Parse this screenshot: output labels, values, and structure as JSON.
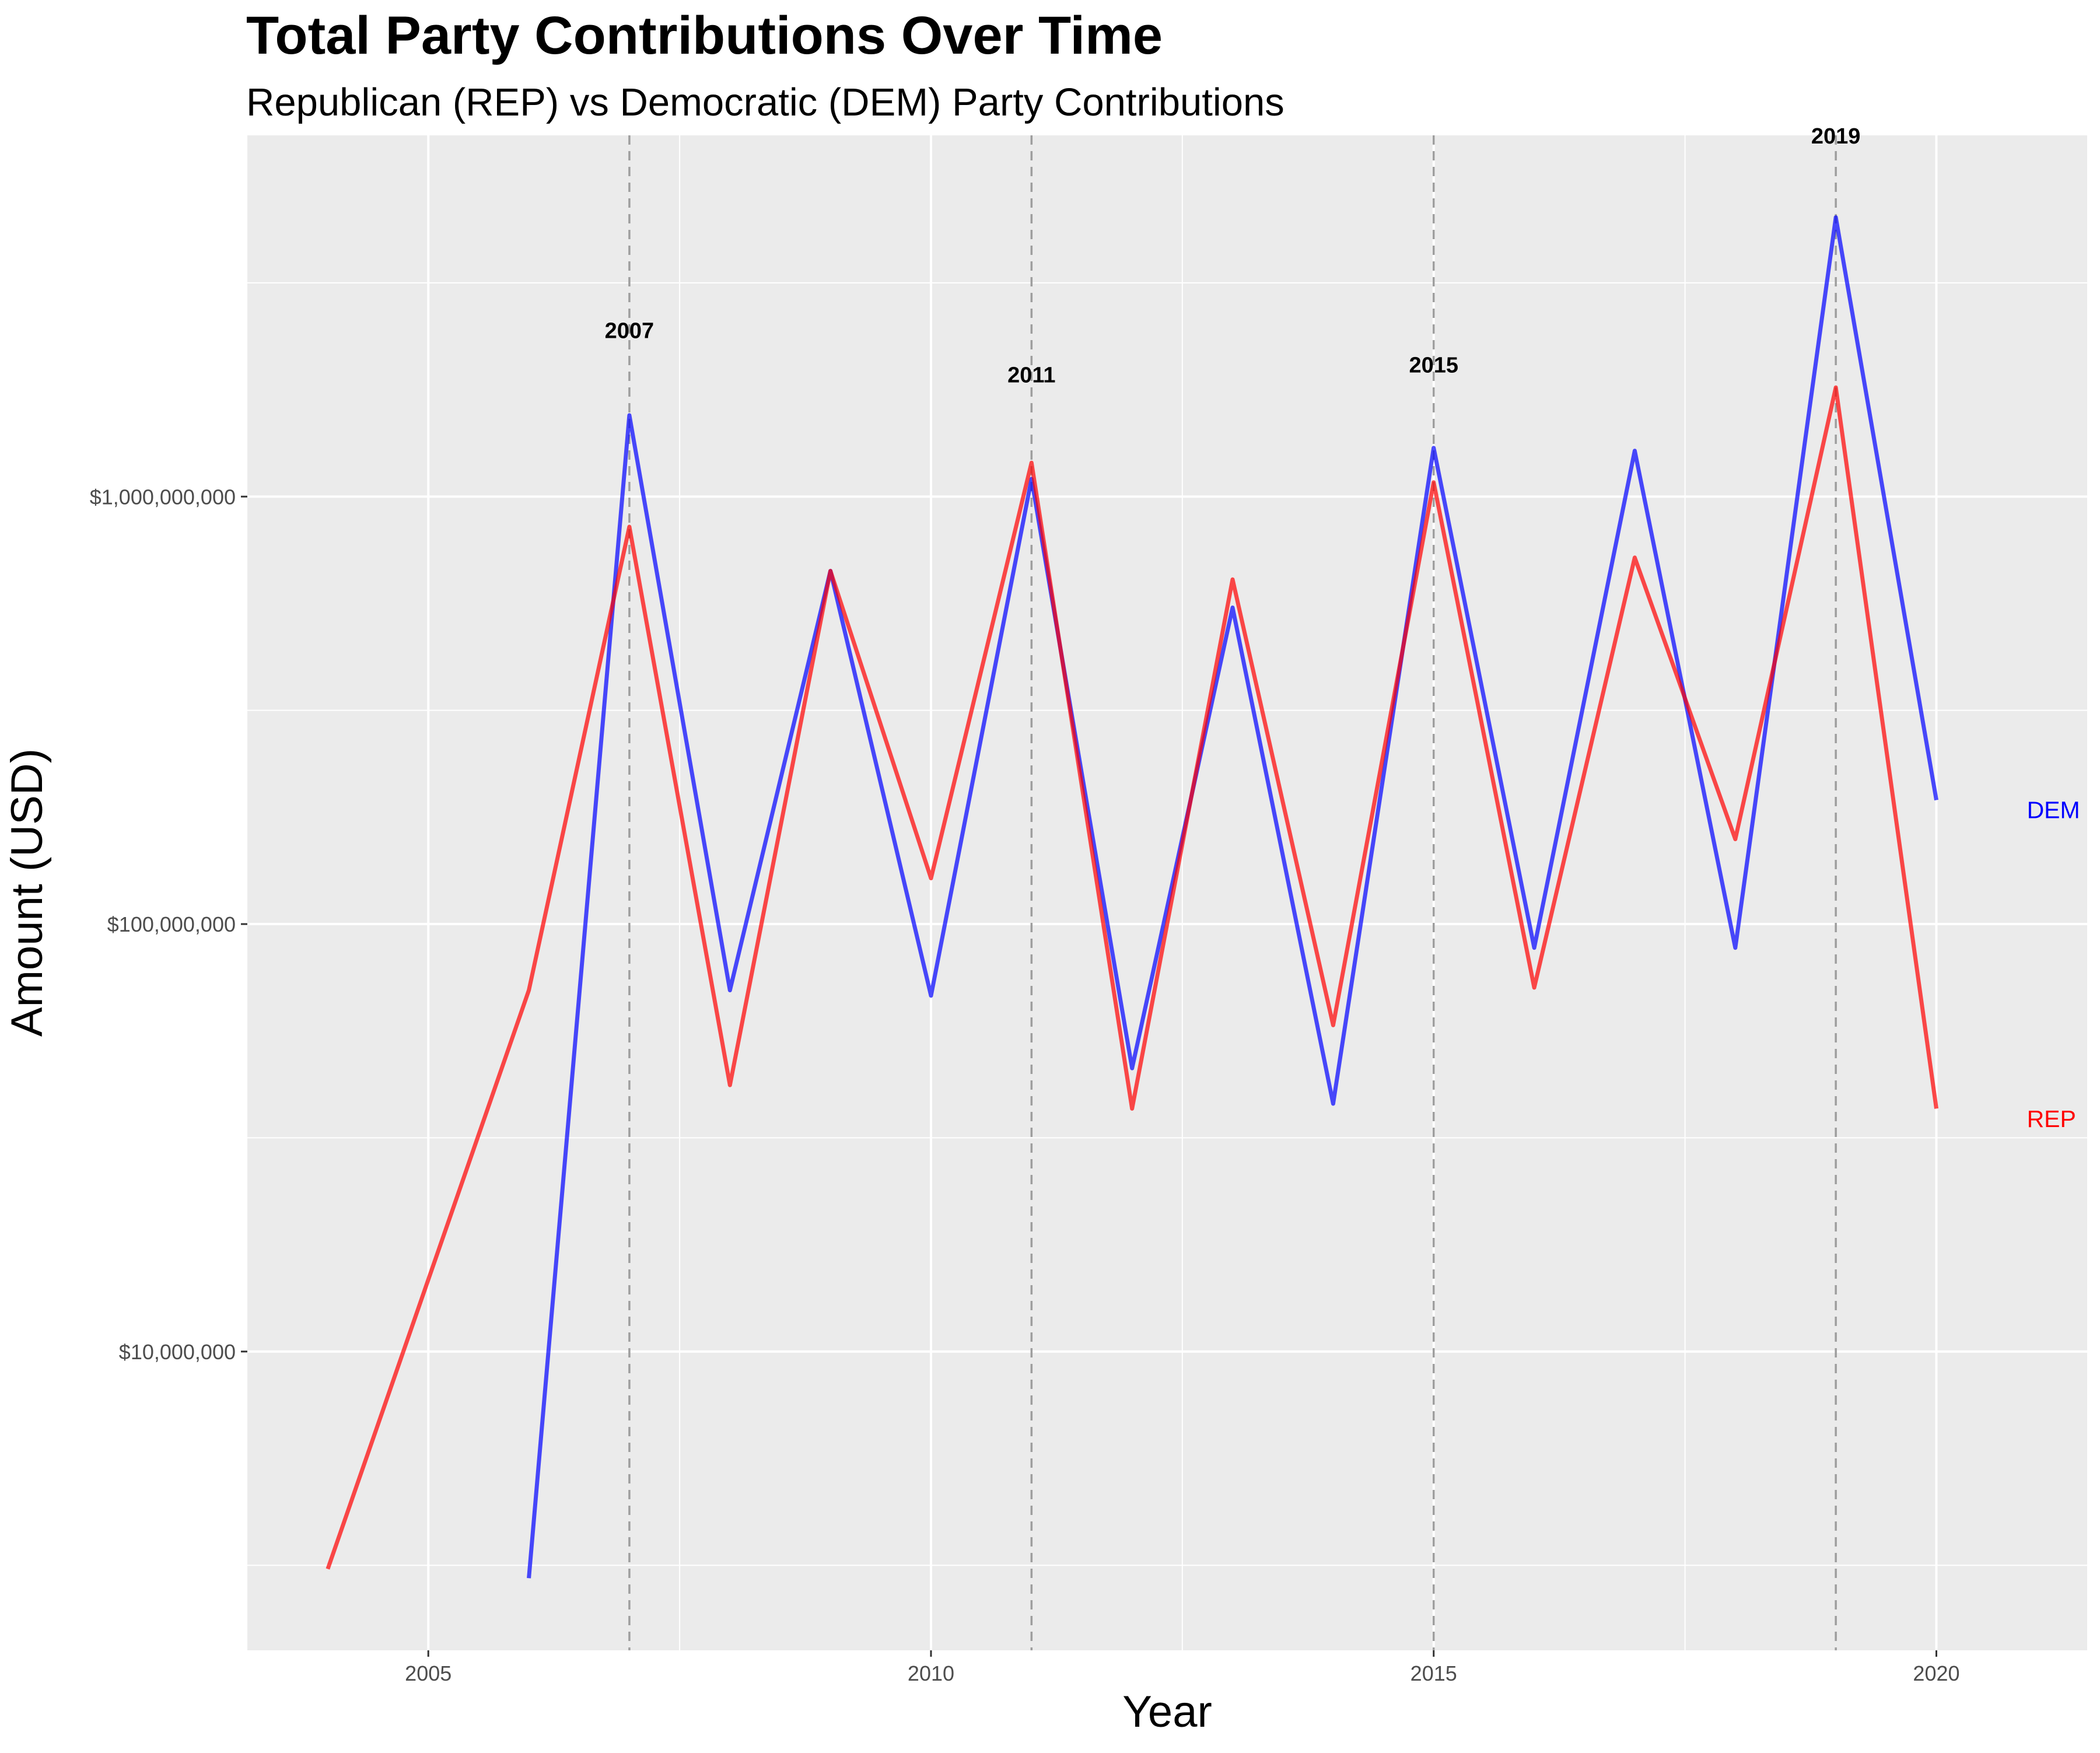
{
  "chart_data": {
    "type": "line",
    "title": "Total Party Contributions Over Time",
    "subtitle": "Republican (REP) vs Democratic (DEM) Party Contributions",
    "xlabel": "Year",
    "ylabel": "Amount (USD)",
    "y_scale": "log10",
    "xlim": [
      2003.2,
      2021.5
    ],
    "ylim": [
      2000000,
      7000000000
    ],
    "x_ticks": [
      2005,
      2010,
      2015,
      2020
    ],
    "x_tick_labels": [
      "2005",
      "2010",
      "2015",
      "2020"
    ],
    "y_ticks": [
      10000000,
      100000000,
      1000000000
    ],
    "y_tick_labels": [
      "$10,000,000",
      "$100,000,000",
      "$1,000,000,000"
    ],
    "grid": true,
    "legend": "direct labels at right end of lines",
    "series": [
      {
        "name": "DEM",
        "color": "#0000ff",
        "x": [
          2006,
          2007,
          2008,
          2009,
          2010,
          2011,
          2012,
          2013,
          2014,
          2015,
          2016,
          2017,
          2018,
          2019,
          2020
        ],
        "values": [
          2950000,
          1550000000,
          70000000,
          670000000,
          68000000,
          1100000000,
          46000000,
          550000000,
          38000000,
          1300000000,
          88000000,
          1280000000,
          88000000,
          4500000000,
          195000000
        ]
      },
      {
        "name": "REP",
        "color": "#ff0000",
        "x": [
          2004,
          2006,
          2007,
          2008,
          2009,
          2010,
          2011,
          2012,
          2013,
          2014,
          2015,
          2016,
          2017,
          2018,
          2019,
          2020
        ],
        "values": [
          3100000,
          70000000,
          850000000,
          42000000,
          670000000,
          128000000,
          1200000000,
          37000000,
          640000000,
          58000000,
          1080000000,
          71000000,
          720000000,
          158000000,
          1800000000,
          37000000
        ]
      }
    ],
    "vlines": [
      2007,
      2011,
      2015,
      2019
    ],
    "annotations": [
      {
        "label": "2007",
        "x": 2007,
        "y": 2350000000
      },
      {
        "label": "2011",
        "x": 2011,
        "y": 1850000000
      },
      {
        "label": "2015",
        "x": 2015,
        "y": 1950000000
      },
      {
        "label": "2019",
        "x": 2019,
        "y": 6700000000
      }
    ],
    "series_labels": [
      {
        "label": "DEM",
        "x": 2020.9,
        "y": 185000000,
        "color": "#0000ff"
      },
      {
        "label": "REP",
        "x": 2020.9,
        "y": 35000000,
        "color": "#ff0000"
      }
    ]
  }
}
